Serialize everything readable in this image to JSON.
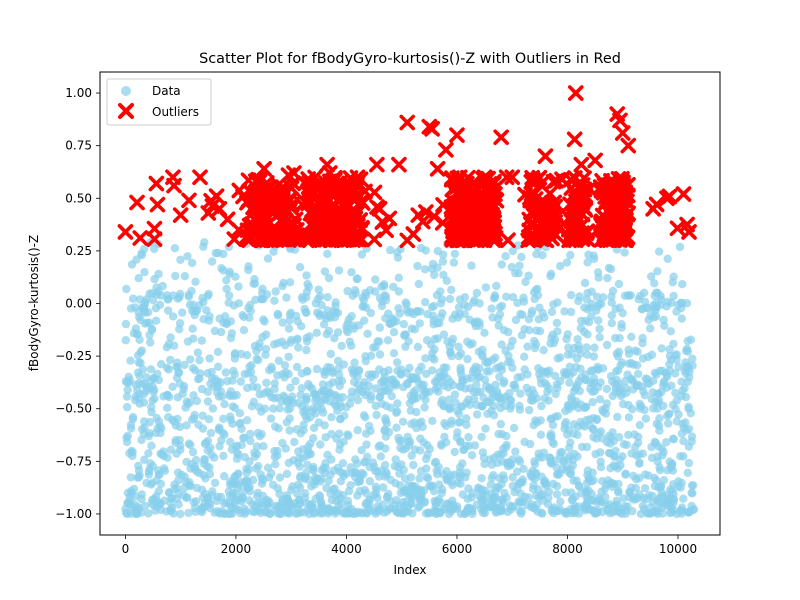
{
  "chart_data": {
    "type": "scatter",
    "title": "Scatter Plot for fBodyGyro-kurtosis()-Z with Outliers in Red",
    "xlabel": "Index",
    "ylabel": "fBodyGyro-kurtosis()-Z",
    "xlim": [
      -460,
      10760
    ],
    "ylim": [
      -1.1,
      1.1
    ],
    "x_ticks": [
      0,
      2000,
      4000,
      6000,
      8000,
      10000
    ],
    "y_ticks": [
      -1.0,
      -0.75,
      -0.5,
      -0.25,
      0.0,
      0.25,
      0.5,
      0.75,
      1.0
    ],
    "x_tick_labels": [
      "0",
      "2000",
      "4000",
      "6000",
      "8000",
      "10000"
    ],
    "y_tick_labels": [
      "−1.00",
      "−0.75",
      "−0.50",
      "−0.25",
      "0.00",
      "0.25",
      "0.50",
      "0.75",
      "1.00"
    ],
    "grid": false,
    "legend_position": "top-left",
    "series": [
      {
        "name": "Data",
        "color": "#87CEEB",
        "marker": "circle",
        "x_range": [
          0,
          10299
        ],
        "y_range": [
          -1.0,
          0.3
        ],
        "point_count": 10299
      },
      {
        "name": "Outliers",
        "color": "#FF0000",
        "marker": "x",
        "x_range": [
          0,
          10299
        ],
        "y_range": [
          0.3,
          1.0
        ],
        "points": [
          [
            0,
            0.34
          ],
          [
            210,
            0.48
          ],
          [
            560,
            0.57
          ],
          [
            580,
            0.47
          ],
          [
            860,
            0.6
          ],
          [
            880,
            0.56
          ],
          [
            1000,
            0.42
          ],
          [
            1150,
            0.49
          ],
          [
            1350,
            0.6
          ],
          [
            1500,
            0.43
          ],
          [
            1650,
            0.51
          ],
          [
            1700,
            0.45
          ],
          [
            1850,
            0.4
          ],
          [
            2050,
            0.35
          ],
          [
            2300,
            0.36
          ],
          [
            2510,
            0.64
          ],
          [
            2550,
            0.47
          ],
          [
            2650,
            0.33
          ],
          [
            2800,
            0.43
          ],
          [
            2950,
            0.61
          ],
          [
            3050,
            0.62
          ],
          [
            3200,
            0.47
          ],
          [
            3450,
            0.55
          ],
          [
            3550,
            0.44
          ],
          [
            3650,
            0.66
          ],
          [
            3700,
            0.62
          ],
          [
            3800,
            0.37
          ],
          [
            4000,
            0.42
          ],
          [
            4100,
            0.5
          ],
          [
            4200,
            0.6
          ],
          [
            4550,
            0.66
          ],
          [
            4600,
            0.45
          ],
          [
            4950,
            0.66
          ],
          [
            5100,
            0.86
          ],
          [
            5300,
            0.42
          ],
          [
            5500,
            0.84
          ],
          [
            5550,
            0.83
          ],
          [
            5650,
            0.64
          ],
          [
            5800,
            0.73
          ],
          [
            6000,
            0.8
          ],
          [
            6050,
            0.6
          ],
          [
            6100,
            0.52
          ],
          [
            6300,
            0.45
          ],
          [
            6500,
            0.6
          ],
          [
            6600,
            0.35
          ],
          [
            6800,
            0.79
          ],
          [
            6900,
            0.6
          ],
          [
            7000,
            0.6
          ],
          [
            7400,
            0.52
          ],
          [
            7600,
            0.7
          ],
          [
            7900,
            0.59
          ],
          [
            8150,
            1.0
          ],
          [
            8130,
            0.78
          ],
          [
            8250,
            0.66
          ],
          [
            8300,
            0.5
          ],
          [
            8500,
            0.68
          ],
          [
            8700,
            0.48
          ],
          [
            8900,
            0.9
          ],
          [
            8950,
            0.87
          ],
          [
            9000,
            0.81
          ],
          [
            9100,
            0.75
          ],
          [
            9550,
            0.45
          ],
          [
            9800,
            0.5
          ],
          [
            10100,
            0.52
          ],
          [
            10200,
            0.34
          ]
        ]
      }
    ]
  }
}
